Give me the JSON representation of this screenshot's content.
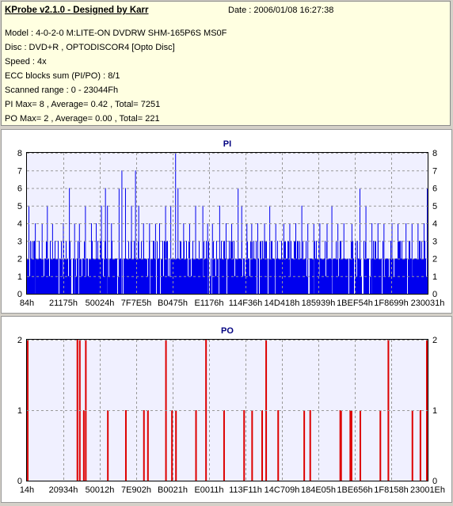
{
  "header": {
    "title": "KProbe v2.1.0 - Designed by Karr",
    "date": "Date : 2006/01/08 16:27:38",
    "lines": [
      "Model : 4-0-2-0 M:LITE-ON DVDRW SHM-165P6S MS0F",
      "Disc : DVD+R , OPTODISCOR4 [Opto Disc]",
      "Speed : 4x",
      "ECC blocks sum (PI/PO) : 8/1",
      "Scanned range : 0 - 23044Fh",
      "PI Max= 8 , Average= 0.42 , Total= 7251",
      "PO Max= 2 , Average= 0.00 , Total= 221"
    ]
  },
  "chart_data": [
    {
      "type": "bar",
      "title": "PI",
      "ylim": [
        0,
        8
      ],
      "yticks": [
        0,
        1,
        2,
        3,
        4,
        5,
        6,
        7,
        8
      ],
      "xticks": [
        "84h",
        "21175h",
        "50024h",
        "7F7E5h",
        "B0475h",
        "E1176h",
        "114F36h",
        "14D418h",
        "185939h",
        "1BEF54h",
        "1F8699h",
        "230031h"
      ],
      "grid": true,
      "colors": {
        "bar": "#0000ee",
        "background": "#f0f0ff",
        "grid": "#999999",
        "title": "#000080"
      },
      "spikes": [
        {
          "x": 0.004,
          "y": 5
        },
        {
          "x": 0.02,
          "y": 4
        },
        {
          "x": 0.037,
          "y": 4
        },
        {
          "x": 0.05,
          "y": 5
        },
        {
          "x": 0.063,
          "y": 4
        },
        {
          "x": 0.09,
          "y": 4
        },
        {
          "x": 0.105,
          "y": 6
        },
        {
          "x": 0.118,
          "y": 4
        },
        {
          "x": 0.13,
          "y": 4
        },
        {
          "x": 0.145,
          "y": 5
        },
        {
          "x": 0.16,
          "y": 4
        },
        {
          "x": 0.172,
          "y": 4
        },
        {
          "x": 0.185,
          "y": 5
        },
        {
          "x": 0.195,
          "y": 6
        },
        {
          "x": 0.2,
          "y": 5
        },
        {
          "x": 0.21,
          "y": 4
        },
        {
          "x": 0.229,
          "y": 6
        },
        {
          "x": 0.236,
          "y": 7
        },
        {
          "x": 0.245,
          "y": 6
        },
        {
          "x": 0.26,
          "y": 5
        },
        {
          "x": 0.27,
          "y": 7
        },
        {
          "x": 0.278,
          "y": 5
        },
        {
          "x": 0.29,
          "y": 4
        },
        {
          "x": 0.305,
          "y": 4
        },
        {
          "x": 0.32,
          "y": 4
        },
        {
          "x": 0.33,
          "y": 4
        },
        {
          "x": 0.345,
          "y": 5
        },
        {
          "x": 0.358,
          "y": 5
        },
        {
          "x": 0.37,
          "y": 8
        },
        {
          "x": 0.376,
          "y": 6
        },
        {
          "x": 0.39,
          "y": 4
        },
        {
          "x": 0.405,
          "y": 4
        },
        {
          "x": 0.42,
          "y": 5
        },
        {
          "x": 0.438,
          "y": 5
        },
        {
          "x": 0.45,
          "y": 4
        },
        {
          "x": 0.462,
          "y": 4
        },
        {
          "x": 0.48,
          "y": 5
        },
        {
          "x": 0.496,
          "y": 4
        },
        {
          "x": 0.51,
          "y": 4
        },
        {
          "x": 0.526,
          "y": 6
        },
        {
          "x": 0.535,
          "y": 5
        },
        {
          "x": 0.548,
          "y": 4
        },
        {
          "x": 0.56,
          "y": 4
        },
        {
          "x": 0.575,
          "y": 4
        },
        {
          "x": 0.592,
          "y": 4
        },
        {
          "x": 0.605,
          "y": 5
        },
        {
          "x": 0.62,
          "y": 4
        },
        {
          "x": 0.64,
          "y": 4
        },
        {
          "x": 0.655,
          "y": 4
        },
        {
          "x": 0.67,
          "y": 4
        },
        {
          "x": 0.685,
          "y": 5
        },
        {
          "x": 0.7,
          "y": 4
        },
        {
          "x": 0.715,
          "y": 4
        },
        {
          "x": 0.73,
          "y": 4
        },
        {
          "x": 0.748,
          "y": 4
        },
        {
          "x": 0.76,
          "y": 5
        },
        {
          "x": 0.775,
          "y": 4
        },
        {
          "x": 0.79,
          "y": 4
        },
        {
          "x": 0.81,
          "y": 4
        },
        {
          "x": 0.83,
          "y": 6
        },
        {
          "x": 0.845,
          "y": 5
        },
        {
          "x": 0.86,
          "y": 4
        },
        {
          "x": 0.875,
          "y": 4
        },
        {
          "x": 0.89,
          "y": 4
        },
        {
          "x": 0.91,
          "y": 4
        },
        {
          "x": 0.925,
          "y": 4
        },
        {
          "x": 0.945,
          "y": 4
        },
        {
          "x": 0.96,
          "y": 4
        },
        {
          "x": 0.975,
          "y": 4
        },
        {
          "x": 0.99,
          "y": 4
        },
        {
          "x": 0.998,
          "y": 6
        }
      ]
    },
    {
      "type": "bar",
      "title": "PO",
      "ylim": [
        0,
        2
      ],
      "yticks": [
        0,
        1,
        2
      ],
      "xticks": [
        "14h",
        "20934h",
        "50012h",
        "7E902h",
        "B0021h",
        "E0011h",
        "113F11h",
        "14C709h",
        "184E05h",
        "1BE656h",
        "1F8158h",
        "23001Eh"
      ],
      "grid": true,
      "colors": {
        "bar": "#dd0000",
        "background": "#f0f0ff",
        "grid": "#999999",
        "title": "#000080"
      },
      "spikes": [
        {
          "x": 0.0,
          "y": 2
        },
        {
          "x": 0.124,
          "y": 2
        },
        {
          "x": 0.13,
          "y": 2
        },
        {
          "x": 0.14,
          "y": 1
        },
        {
          "x": 0.145,
          "y": 2
        },
        {
          "x": 0.2,
          "y": 1
        },
        {
          "x": 0.245,
          "y": 1
        },
        {
          "x": 0.29,
          "y": 1
        },
        {
          "x": 0.3,
          "y": 1
        },
        {
          "x": 0.345,
          "y": 2
        },
        {
          "x": 0.36,
          "y": 1
        },
        {
          "x": 0.37,
          "y": 1
        },
        {
          "x": 0.42,
          "y": 1
        },
        {
          "x": 0.445,
          "y": 2
        },
        {
          "x": 0.49,
          "y": 1
        },
        {
          "x": 0.54,
          "y": 1
        },
        {
          "x": 0.56,
          "y": 1
        },
        {
          "x": 0.585,
          "y": 1
        },
        {
          "x": 0.595,
          "y": 2
        },
        {
          "x": 0.625,
          "y": 1
        },
        {
          "x": 0.69,
          "y": 1
        },
        {
          "x": 0.705,
          "y": 1
        },
        {
          "x": 0.78,
          "y": 1
        },
        {
          "x": 0.782,
          "y": 1
        },
        {
          "x": 0.805,
          "y": 1
        },
        {
          "x": 0.808,
          "y": 1
        },
        {
          "x": 0.83,
          "y": 1
        },
        {
          "x": 0.88,
          "y": 1
        },
        {
          "x": 0.9,
          "y": 2
        },
        {
          "x": 0.96,
          "y": 1
        },
        {
          "x": 0.98,
          "y": 1
        },
        {
          "x": 0.998,
          "y": 2
        },
        {
          "x": 1.0,
          "y": 2
        }
      ]
    }
  ]
}
